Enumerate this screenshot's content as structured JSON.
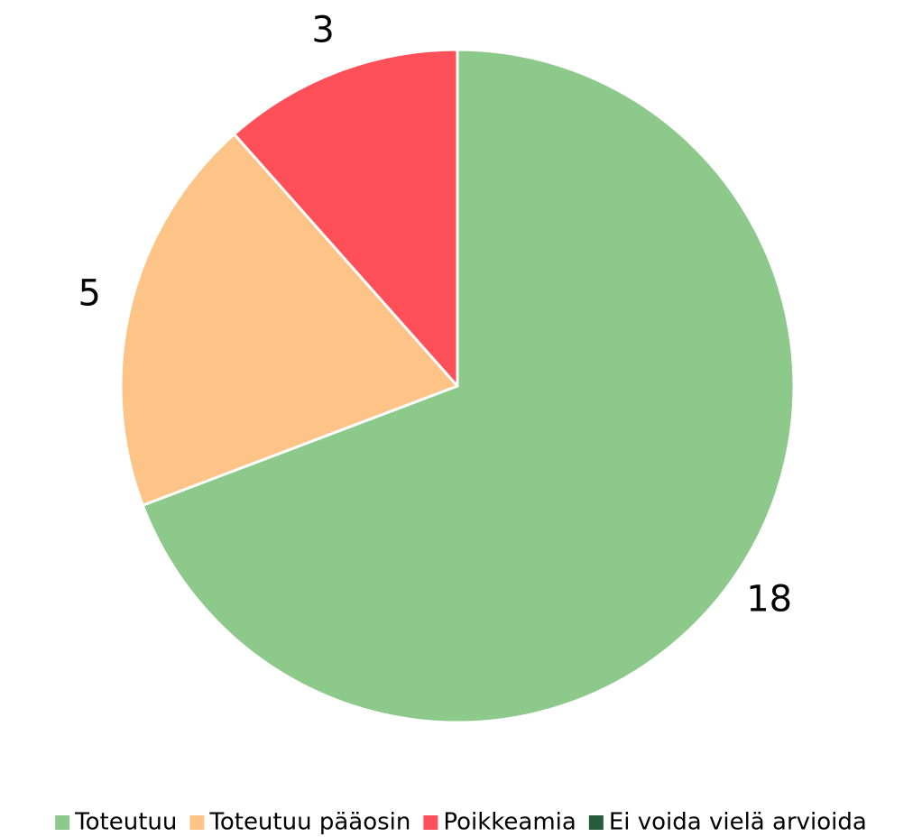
{
  "chart_data": {
    "type": "pie",
    "categories": [
      "Toteutuu",
      "Toteutuu pääosin",
      "Poikkeamia",
      "Ei voida vielä arvioida"
    ],
    "values": [
      18,
      5,
      3,
      0
    ],
    "colors": [
      "#8cc98a",
      "#fdc387",
      "#ff4f58",
      "#265c3e"
    ],
    "legend": "bottom"
  }
}
